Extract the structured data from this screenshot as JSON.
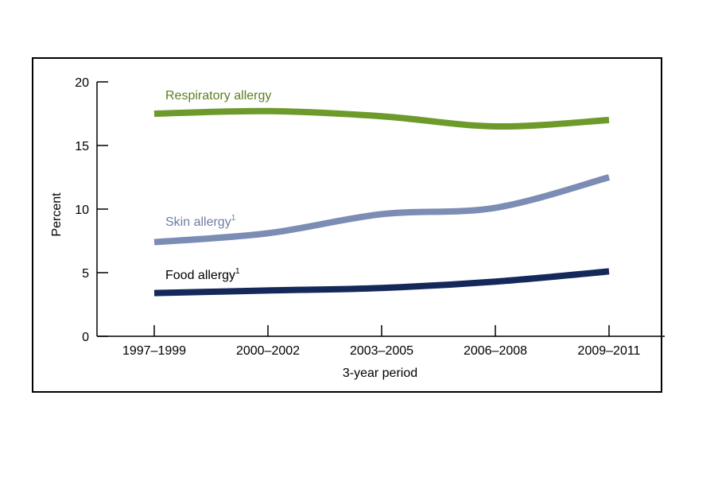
{
  "chart_data": {
    "type": "line",
    "title": "",
    "xlabel": "3-year period",
    "ylabel": "Percent",
    "categories": [
      "1997–1999",
      "2000–2002",
      "2003–2005",
      "2006–2008",
      "2009–2011"
    ],
    "ylim": [
      0,
      20
    ],
    "yticks": [
      0,
      5,
      10,
      15,
      20
    ],
    "grid": false,
    "legend": "inline labels",
    "series": [
      {
        "name": "Respiratory allergy",
        "footnote": "",
        "color": "#6e9a2c",
        "label_color": "#5b7f1d",
        "values": [
          17.5,
          17.7,
          17.3,
          16.5,
          17.0
        ]
      },
      {
        "name": "Skin allergy",
        "footnote": "1",
        "color": "#7b8cb5",
        "label_color": "#6e7ea6",
        "values": [
          7.4,
          8.1,
          9.6,
          10.1,
          12.5
        ]
      },
      {
        "name": "Food allergy",
        "footnote": "1",
        "color": "#14295a",
        "label_color": "#000000",
        "values": [
          3.4,
          3.6,
          3.8,
          4.3,
          5.1
        ]
      }
    ]
  }
}
